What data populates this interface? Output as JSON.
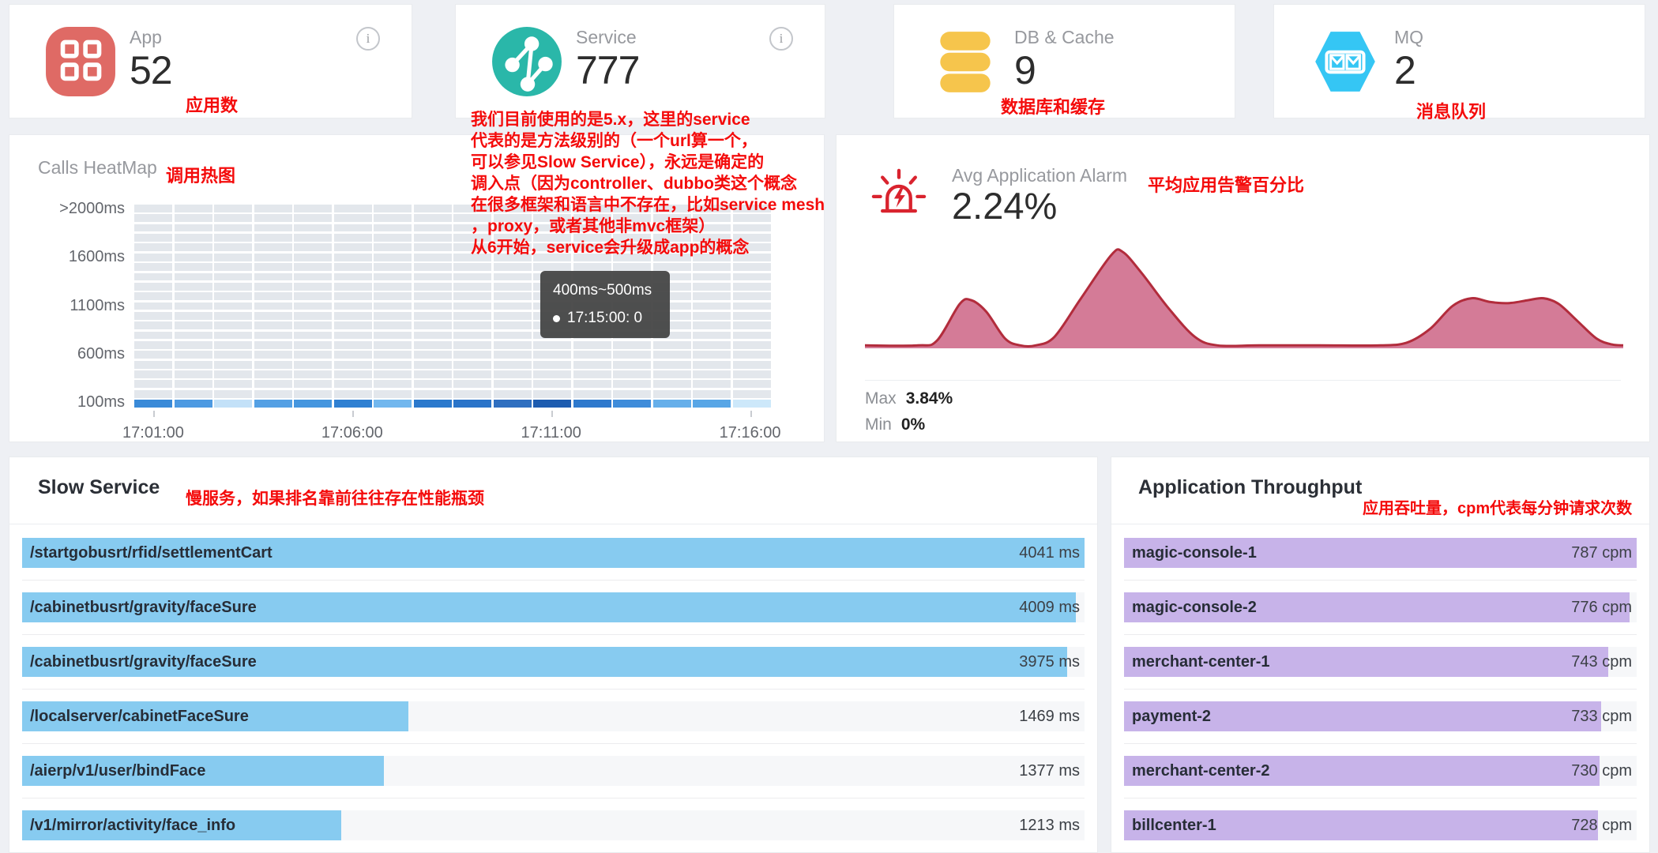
{
  "colors": {
    "annotation_red": "#f40b0b",
    "page_bg": "#eef0f4",
    "app_icon": "#df6a65",
    "service_icon": "#2ab7a9",
    "db_icon": "#f6c54c",
    "mq_icon": "#35c6f4",
    "alarm_icon": "#d9232e",
    "heat_cell": "#e3e7ec",
    "area_fill": "#d47b97",
    "area_stroke": "#b22c3c",
    "slow_bar": "#87cbf0",
    "tp_bar": "#c7b3e9"
  },
  "stat_cards": [
    {
      "label": "App",
      "value": "52",
      "note": "应用数",
      "icon": "app-grid-icon",
      "icon_color": "#df6a65"
    },
    {
      "label": "Service",
      "value": "777",
      "icon": "service-topology-icon",
      "icon_color": "#2ab7a9"
    },
    {
      "label": "DB & Cache",
      "value": "9",
      "note": "数据库和缓存",
      "icon": "database-icon",
      "icon_color": "#f6c54c"
    },
    {
      "label": "MQ",
      "value": "2",
      "note": "消息队列",
      "icon": "mq-hexagon-icon",
      "icon_color": "#35c6f4"
    }
  ],
  "service_note_lines": [
    "我们目前使用的是5.x，这里的service",
    "代表的是方法级别的（一个url算一个，",
    "可以参见Slow Service），永远是确定的",
    "调入点（因为controller、dubbo类这个概念",
    "在很多框架和语言中不存在，比如service mesh",
    "，proxy，或者其他非mvc框架）",
    "从6开始，service会升级成app的概念"
  ],
  "heatmap": {
    "title": "Calls HeatMap",
    "note": "调用热图",
    "rows": 21,
    "cols": 16,
    "y_labels": [
      ">2000ms",
      "1600ms",
      "1100ms",
      "600ms",
      "100ms"
    ],
    "x_labels": [
      "17:01:00",
      "17:06:00",
      "17:11:00",
      "17:16:00"
    ],
    "blue_row_colors": [
      "#3a8ad8",
      "#4d9ae2",
      "#c3e1f8",
      "#54a0e4",
      "#4596df",
      "#2f80d2",
      "#72b7ee",
      "#2b79cd",
      "#2a74c9",
      "#2f6fc0",
      "#1d5cb0",
      "#2e79cd",
      "#3f8cda",
      "#66afea",
      "#58a6e6",
      "#cde8fa"
    ],
    "tooltip": {
      "range": "400ms~500ms",
      "time": "17:15:00",
      "count": "0"
    }
  },
  "alarm": {
    "title": "Avg Application Alarm",
    "note": "平均应用告警百分比",
    "value": "2.24%",
    "max_label": "Max",
    "max_value": "3.84%",
    "min_label": "Min",
    "min_value": "0%",
    "chart_data": {
      "type": "area",
      "points": [
        [
          0,
          0.03
        ],
        [
          0.07,
          0.03
        ],
        [
          0.095,
          0.08
        ],
        [
          0.125,
          0.46
        ],
        [
          0.14,
          0.5
        ],
        [
          0.16,
          0.38
        ],
        [
          0.185,
          0.1
        ],
        [
          0.205,
          0.03
        ],
        [
          0.225,
          0.03
        ],
        [
          0.25,
          0.12
        ],
        [
          0.285,
          0.52
        ],
        [
          0.325,
          0.97
        ],
        [
          0.34,
          1.0
        ],
        [
          0.365,
          0.78
        ],
        [
          0.4,
          0.42
        ],
        [
          0.435,
          0.12
        ],
        [
          0.465,
          0.03
        ],
        [
          0.52,
          0.03
        ],
        [
          0.6,
          0.03
        ],
        [
          0.68,
          0.03
        ],
        [
          0.715,
          0.06
        ],
        [
          0.745,
          0.2
        ],
        [
          0.775,
          0.44
        ],
        [
          0.8,
          0.52
        ],
        [
          0.825,
          0.48
        ],
        [
          0.85,
          0.47
        ],
        [
          0.875,
          0.5
        ],
        [
          0.895,
          0.52
        ],
        [
          0.915,
          0.46
        ],
        [
          0.94,
          0.28
        ],
        [
          0.965,
          0.1
        ],
        [
          0.985,
          0.04
        ],
        [
          1,
          0.03
        ]
      ],
      "y_max_value": "3.84%",
      "y_min_value": "0%"
    }
  },
  "slow_service": {
    "title": "Slow Service",
    "note": "慢服务，如果排名靠前往往存在性能瓶颈",
    "unit": "ms",
    "items": [
      {
        "name": "/startgobusrt/rfid/settlementCart",
        "value": 4041
      },
      {
        "name": "/cabinetbusrt/gravity/faceSure",
        "value": 4009
      },
      {
        "name": "/cabinetbusrt/gravity/faceSure",
        "value": 3975
      },
      {
        "name": "/localserver/cabinetFaceSure",
        "value": 1469
      },
      {
        "name": "/aierp/v1/user/bindFace",
        "value": 1377
      },
      {
        "name": "/v1/mirror/activity/face_info",
        "value": 1213
      }
    ]
  },
  "throughput": {
    "title": "Application Throughput",
    "note": "应用吞吐量，cpm代表每分钟请求次数",
    "unit": "cpm",
    "items": [
      {
        "name": "magic-console-1",
        "value": 787
      },
      {
        "name": "magic-console-2",
        "value": 776
      },
      {
        "name": "merchant-center-1",
        "value": 743
      },
      {
        "name": "payment-2",
        "value": 733
      },
      {
        "name": "merchant-center-2",
        "value": 730
      },
      {
        "name": "billcenter-1",
        "value": 728
      }
    ]
  }
}
